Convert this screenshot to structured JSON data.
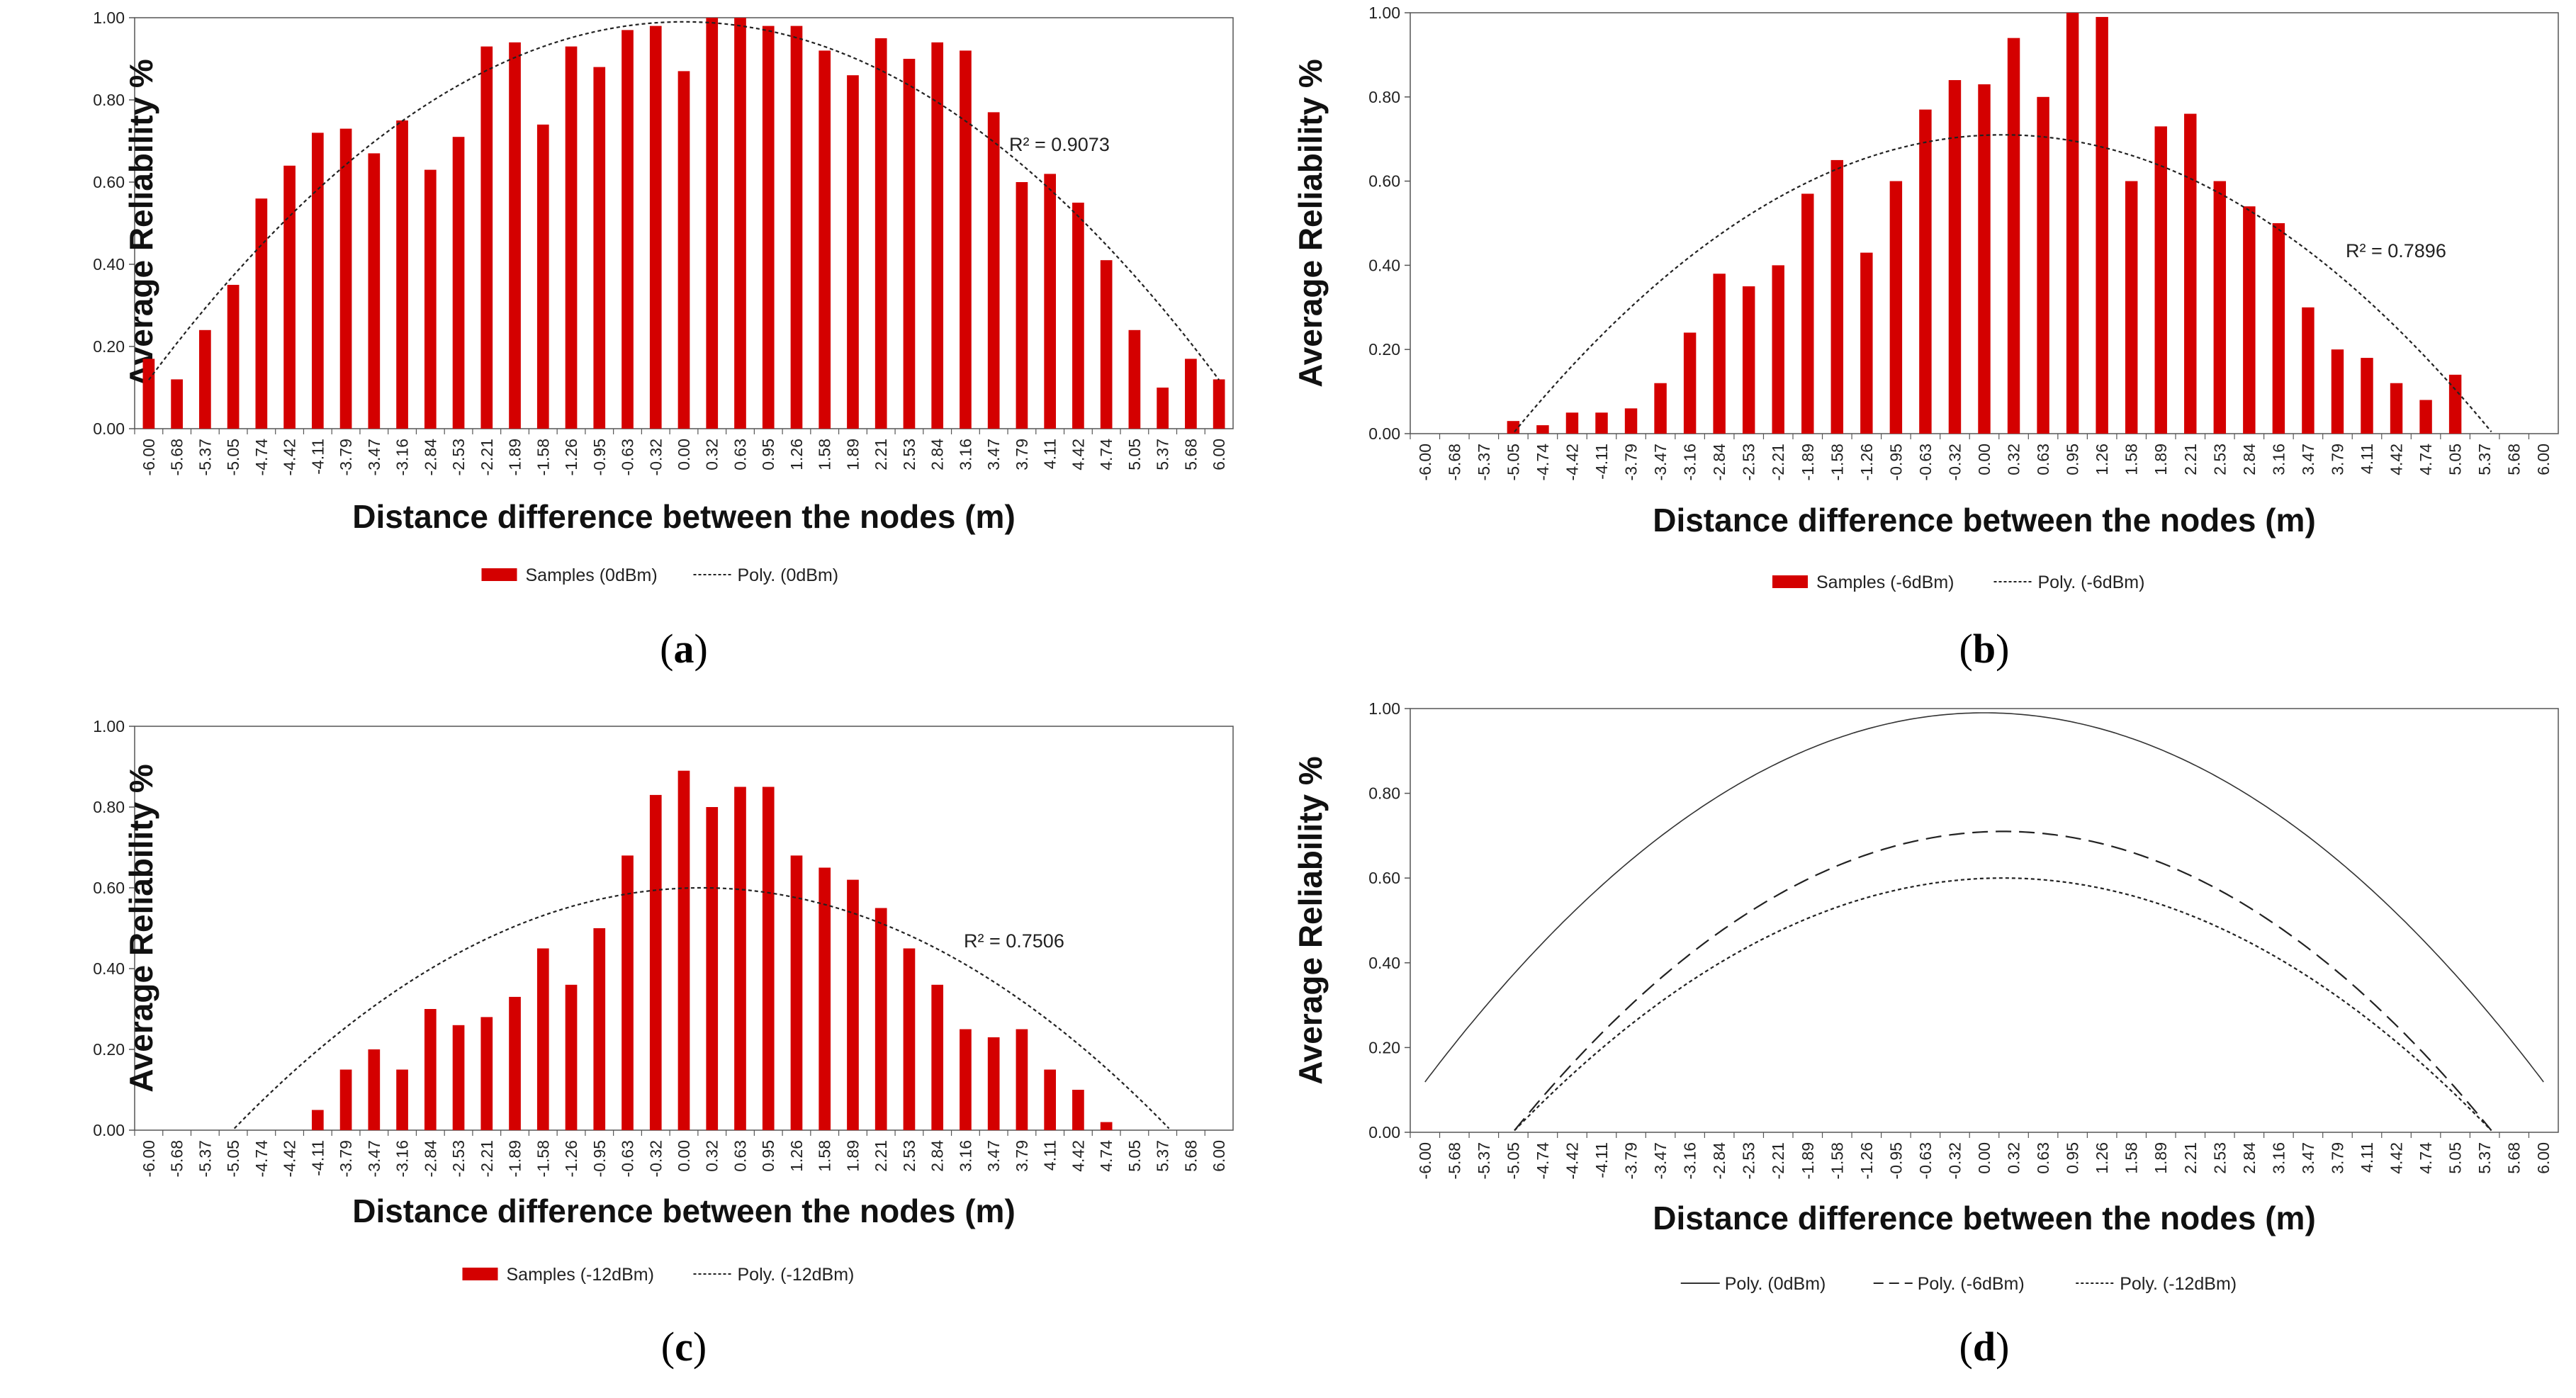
{
  "chart_data": [
    {
      "type": "bar",
      "panel_label": "a",
      "ylabel": "Average Reliability %",
      "xlabel": "Distance difference between the nodes (m)",
      "ylim": [
        0,
        1.0
      ],
      "y_ticks": [
        "0.00",
        "0.20",
        "0.40",
        "0.60",
        "0.80",
        "1.00"
      ],
      "categories": [
        "-6.00",
        "-5.68",
        "-5.37",
        "-5.05",
        "-4.74",
        "-4.42",
        "-4.11",
        "-3.79",
        "-3.47",
        "-3.16",
        "-2.84",
        "-2.53",
        "-2.21",
        "-1.89",
        "-1.58",
        "-1.26",
        "-0.95",
        "-0.63",
        "-0.32",
        "0.00",
        "0.32",
        "0.63",
        "0.95",
        "1.26",
        "1.58",
        "1.89",
        "2.21",
        "2.53",
        "2.84",
        "3.16",
        "3.47",
        "3.79",
        "4.11",
        "4.42",
        "4.74",
        "5.05",
        "5.37",
        "5.68",
        "6.00"
      ],
      "series": [
        {
          "name": "Samples (0dBm)",
          "kind": "bar",
          "color": "#d40000",
          "values": [
            0.17,
            0.12,
            0.24,
            0.35,
            0.56,
            0.64,
            0.72,
            0.73,
            0.67,
            0.75,
            0.63,
            0.71,
            0.93,
            0.94,
            0.74,
            0.93,
            0.88,
            0.97,
            0.98,
            0.87,
            1.0,
            1.0,
            0.98,
            0.98,
            0.92,
            0.86,
            0.95,
            0.9,
            0.94,
            0.92,
            0.77,
            0.6,
            0.62,
            0.55,
            0.41,
            0.24,
            0.1,
            0.17,
            0.12
          ]
        },
        {
          "name": "Poly. (0dBm)",
          "kind": "trend",
          "style": "dotted",
          "color": "#222222",
          "peak_x": 0.0,
          "peak_y": 0.99,
          "coef": 0.0242
        }
      ],
      "annotation": "R² = 0.9073",
      "legend_position": "bottom"
    },
    {
      "type": "bar",
      "panel_label": "b",
      "ylabel": "Average Reliability %",
      "xlabel": "Distance difference between the nodes (m)",
      "ylim": [
        0,
        1.0
      ],
      "y_ticks": [
        "0.00",
        "0.20",
        "0.40",
        "0.60",
        "0.80",
        "1.00"
      ],
      "categories": [
        "-6.00",
        "-5.68",
        "-5.37",
        "-5.05",
        "-4.74",
        "-4.42",
        "-4.11",
        "-3.79",
        "-3.47",
        "-3.16",
        "-2.84",
        "-2.53",
        "-2.21",
        "-1.89",
        "-1.58",
        "-1.26",
        "-0.95",
        "-0.63",
        "-0.32",
        "0.00",
        "0.32",
        "0.63",
        "0.95",
        "1.26",
        "1.58",
        "1.89",
        "2.21",
        "2.53",
        "2.84",
        "3.16",
        "3.47",
        "3.79",
        "4.11",
        "4.42",
        "4.74",
        "5.05",
        "5.37",
        "5.68",
        "6.00"
      ],
      "series": [
        {
          "name": "Samples (-6dBm)",
          "kind": "bar",
          "color": "#d40000",
          "values": [
            0,
            0,
            0,
            0.03,
            0.02,
            0.05,
            0.05,
            0.06,
            0.12,
            0.24,
            0.38,
            0.35,
            0.4,
            0.57,
            0.65,
            0.43,
            0.6,
            0.77,
            0.84,
            0.83,
            0.94,
            0.8,
            1.0,
            0.99,
            0.6,
            0.73,
            0.76,
            0.6,
            0.54,
            0.5,
            0.3,
            0.2,
            0.18,
            0.12,
            0.08,
            0.14,
            0,
            0,
            0
          ]
        },
        {
          "name": "Poly. (-6dBm)",
          "kind": "trend",
          "style": "dotted",
          "color": "#222222",
          "peak_x": 0.2,
          "peak_y": 0.71,
          "coef": 0.0257
        }
      ],
      "annotation": "R² = 0.7896",
      "legend_position": "bottom"
    },
    {
      "type": "bar",
      "panel_label": "c",
      "ylabel": "Average Reliability %",
      "xlabel": "Distance difference between the nodes (m)",
      "ylim": [
        0,
        1.0
      ],
      "y_ticks": [
        "0.00",
        "0.20",
        "0.40",
        "0.60",
        "0.80",
        "1.00"
      ],
      "categories": [
        "-6.00",
        "-5.68",
        "-5.37",
        "-5.05",
        "-4.74",
        "-4.42",
        "-4.11",
        "-3.79",
        "-3.47",
        "-3.16",
        "-2.84",
        "-2.53",
        "-2.21",
        "-1.89",
        "-1.58",
        "-1.26",
        "-0.95",
        "-0.63",
        "-0.32",
        "0.00",
        "0.32",
        "0.63",
        "0.95",
        "1.26",
        "1.58",
        "1.89",
        "2.21",
        "2.53",
        "2.84",
        "3.16",
        "3.47",
        "3.79",
        "4.11",
        "4.42",
        "4.74",
        "5.05",
        "5.37",
        "5.68",
        "6.00"
      ],
      "series": [
        {
          "name": "Samples (-12dBm)",
          "kind": "bar",
          "color": "#d40000",
          "values": [
            0,
            0,
            0,
            0,
            0,
            0,
            0.05,
            0.15,
            0.2,
            0.15,
            0.3,
            0.26,
            0.28,
            0.33,
            0.45,
            0.36,
            0.5,
            0.68,
            0.83,
            0.89,
            0.8,
            0.85,
            0.85,
            0.68,
            0.65,
            0.62,
            0.55,
            0.45,
            0.36,
            0.25,
            0.23,
            0.25,
            0.15,
            0.1,
            0.02,
            0,
            0,
            0,
            0
          ]
        },
        {
          "name": "Poly. (-12dBm)",
          "kind": "trend",
          "style": "dotted",
          "color": "#222222",
          "peak_x": 0.2,
          "peak_y": 0.6,
          "coef": 0.0217
        }
      ],
      "annotation": "R² = 0.7506",
      "legend_position": "bottom"
    },
    {
      "type": "line",
      "panel_label": "d",
      "ylabel": "Average Reliability %",
      "xlabel": "Distance difference between the nodes (m)",
      "ylim": [
        0,
        1.0
      ],
      "y_ticks": [
        "0.00",
        "0.20",
        "0.40",
        "0.60",
        "0.80",
        "1.00"
      ],
      "categories": [
        "-6.00",
        "-5.68",
        "-5.37",
        "-5.05",
        "-4.74",
        "-4.42",
        "-4.11",
        "-3.79",
        "-3.47",
        "-3.16",
        "-2.84",
        "-2.53",
        "-2.21",
        "-1.89",
        "-1.58",
        "-1.26",
        "-0.95",
        "-0.63",
        "-0.32",
        "0.00",
        "0.32",
        "0.63",
        "0.95",
        "1.26",
        "1.58",
        "1.89",
        "2.21",
        "2.53",
        "2.84",
        "3.16",
        "3.47",
        "3.79",
        "4.11",
        "4.42",
        "4.74",
        "5.05",
        "5.37",
        "5.68",
        "6.00"
      ],
      "series": [
        {
          "name": "Poly. (0dBm)",
          "kind": "trend",
          "style": "solid",
          "color": "#333333",
          "peak_x": 0.0,
          "peak_y": 0.99,
          "coef": 0.0242
        },
        {
          "name": "Poly. (-6dBm)",
          "kind": "trend",
          "style": "dashed",
          "color": "#222222",
          "peak_x": 0.2,
          "peak_y": 0.71,
          "coef": 0.0257
        },
        {
          "name": "Poly. (-12dBm)",
          "kind": "trend",
          "style": "dotted",
          "color": "#222222",
          "peak_x": 0.2,
          "peak_y": 0.6,
          "coef": 0.0217
        }
      ],
      "legend_position": "bottom"
    }
  ]
}
